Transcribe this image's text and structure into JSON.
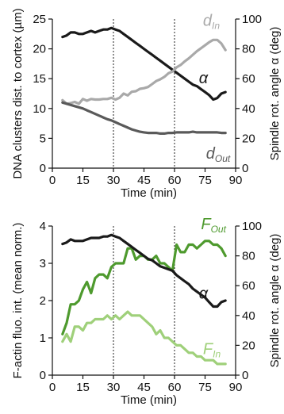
{
  "chart_data": [
    {
      "type": "line",
      "xlabel": "Time (min)",
      "ylabel_left": "DNA clusters dist. to cortex (µm)",
      "ylabel_right": "Spindle rot. angle α (deg)",
      "xlim": [
        0,
        90
      ],
      "xticks": [
        "0",
        "15",
        "30",
        "45",
        "60",
        "75",
        "90"
      ],
      "ylim_left": [
        0,
        25
      ],
      "yticks_left": [
        "0",
        "5",
        "10",
        "15",
        "20",
        "25"
      ],
      "ylim_right": [
        0,
        100
      ],
      "yticks_right": [
        "0",
        "20",
        "40",
        "60",
        "80",
        "100"
      ],
      "vlines": [
        30,
        60
      ],
      "grid": false,
      "series": [
        {
          "name": "α",
          "label_main": "α",
          "label_sub": "",
          "axis": "right",
          "color": "#1a1a1a",
          "label_at": [
            72,
            14.2
          ],
          "x": [
            5,
            7,
            9,
            11,
            13,
            15,
            17,
            19,
            21,
            23,
            25,
            27,
            29,
            31,
            33,
            35,
            37,
            39,
            41,
            43,
            45,
            47,
            49,
            51,
            53,
            55,
            57,
            59,
            61,
            63,
            65,
            67,
            69,
            71,
            73,
            75,
            77,
            79,
            81,
            83,
            85
          ],
          "values": [
            88,
            89,
            91,
            91,
            90,
            90,
            91,
            92,
            91,
            92,
            93,
            93,
            94,
            93,
            92,
            90,
            88,
            86,
            84,
            82,
            80,
            78,
            76,
            74,
            72,
            70,
            68,
            66,
            64,
            62,
            60,
            58,
            56,
            55,
            53,
            51,
            49,
            46,
            47,
            50,
            51
          ]
        },
        {
          "name": "d_In",
          "label_main": "d",
          "label_sub": "In",
          "axis": "left",
          "color": "#a9a9a9",
          "label_at": [
            74,
            23.9
          ],
          "x": [
            5,
            7,
            9,
            11,
            13,
            15,
            17,
            19,
            21,
            23,
            25,
            27,
            29,
            31,
            33,
            35,
            37,
            39,
            41,
            43,
            45,
            47,
            49,
            51,
            53,
            55,
            57,
            59,
            61,
            63,
            65,
            67,
            69,
            71,
            73,
            75,
            77,
            79,
            81,
            83,
            85
          ],
          "values": [
            11.4,
            10.8,
            10.9,
            11.1,
            10.8,
            11.6,
            11.3,
            11.6,
            11.5,
            11.5,
            11.6,
            11.6,
            11.8,
            11.5,
            11.8,
            12.5,
            12.2,
            12.8,
            12.9,
            13.3,
            13.4,
            13.6,
            14.1,
            14.6,
            14.9,
            15.3,
            15.9,
            16.2,
            16.9,
            17.3,
            17.9,
            18.4,
            19.0,
            19.6,
            20.1,
            20.6,
            21.1,
            21.5,
            21.5,
            20.9,
            19.8
          ]
        },
        {
          "name": "d_Out",
          "label_main": "d",
          "label_sub": "Out",
          "axis": "left",
          "color": "#5a5a5a",
          "label_at": [
            75.5,
            1.6
          ],
          "x": [
            5,
            7,
            9,
            11,
            13,
            15,
            17,
            19,
            21,
            23,
            25,
            27,
            29,
            31,
            33,
            35,
            37,
            39,
            41,
            43,
            45,
            47,
            49,
            51,
            53,
            55,
            57,
            59,
            61,
            63,
            65,
            67,
            69,
            71,
            73,
            75,
            77,
            79,
            81,
            83,
            85
          ],
          "values": [
            11.0,
            10.8,
            10.6,
            10.4,
            10.2,
            10.0,
            9.7,
            9.4,
            9.1,
            8.8,
            8.5,
            8.2,
            8.0,
            7.7,
            7.4,
            7.1,
            6.8,
            6.5,
            6.3,
            6.1,
            6.0,
            5.9,
            5.9,
            5.9,
            5.8,
            5.8,
            5.9,
            5.9,
            6.0,
            6.0,
            6.0,
            6.0,
            6.1,
            6.0,
            6.0,
            6.0,
            6.0,
            6.0,
            6.0,
            5.9,
            5.9
          ]
        }
      ]
    },
    {
      "type": "line",
      "xlabel": "Time (min)",
      "ylabel_left": "F-actin fluo. int. (mean norm.)",
      "ylabel_left_color": "#3f9b2a",
      "ylabel_right": "Spindle rot. angle α (deg)",
      "xlim": [
        0,
        90
      ],
      "xticks": [
        "0",
        "15",
        "30",
        "45",
        "60",
        "75",
        "90"
      ],
      "ylim_left": [
        0,
        4
      ],
      "yticks_left": [
        "0",
        "1",
        "2",
        "3",
        "4"
      ],
      "ylim_right": [
        0,
        100
      ],
      "yticks_right": [
        "0",
        "20",
        "40",
        "60",
        "80",
        "100"
      ],
      "vlines": [
        30,
        60
      ],
      "grid": false,
      "series": [
        {
          "name": "F_Out",
          "label_main": "F",
          "label_sub": "Out",
          "axis": "left",
          "color": "#4e9a2e",
          "label_at": [
            73,
            3.92
          ],
          "x": [
            5,
            7,
            9,
            11,
            13,
            15,
            17,
            19,
            21,
            23,
            25,
            27,
            29,
            31,
            33,
            35,
            37,
            39,
            41,
            43,
            45,
            47,
            49,
            51,
            53,
            55,
            57,
            59,
            61,
            63,
            65,
            67,
            69,
            71,
            73,
            75,
            77,
            79,
            81,
            83,
            85
          ],
          "values": [
            1.1,
            1.4,
            1.9,
            1.9,
            2.0,
            2.3,
            2.5,
            2.2,
            2.6,
            2.7,
            2.7,
            2.6,
            2.9,
            3.0,
            3.0,
            3.0,
            3.4,
            3.4,
            3.1,
            3.2,
            3.2,
            3.1,
            3.1,
            3.2,
            3.0,
            3.0,
            2.9,
            2.8,
            3.5,
            3.3,
            3.3,
            3.5,
            3.5,
            3.4,
            3.5,
            3.6,
            3.6,
            3.5,
            3.5,
            3.4,
            3.2
          ]
        },
        {
          "name": "α",
          "label_main": "α",
          "label_sub": "",
          "axis": "right",
          "color": "#1a1a1a",
          "label_at": [
            72,
            2.05
          ],
          "x": [
            5,
            7,
            9,
            11,
            13,
            15,
            17,
            19,
            21,
            23,
            25,
            27,
            29,
            31,
            33,
            35,
            37,
            39,
            41,
            43,
            45,
            47,
            49,
            51,
            53,
            55,
            57,
            59,
            61,
            63,
            65,
            67,
            69,
            71,
            73,
            75,
            77,
            79,
            81,
            83,
            85
          ],
          "values": [
            88,
            89,
            91,
            90,
            90,
            90,
            91,
            92,
            92,
            92,
            93,
            93,
            94,
            93,
            92,
            90,
            88,
            86,
            84,
            82,
            80,
            78,
            77,
            75,
            73,
            72,
            71,
            70,
            67,
            65,
            63,
            61,
            58,
            56,
            54,
            52,
            49,
            46,
            46,
            49,
            50
          ]
        },
        {
          "name": "F_In",
          "label_main": "F",
          "label_sub": "In",
          "axis": "left",
          "color": "#9fd07a",
          "label_at": [
            74,
            0.56
          ],
          "x": [
            5,
            7,
            9,
            11,
            13,
            15,
            17,
            19,
            21,
            23,
            25,
            27,
            29,
            31,
            33,
            35,
            37,
            39,
            41,
            43,
            45,
            47,
            49,
            51,
            53,
            55,
            57,
            59,
            61,
            63,
            65,
            67,
            69,
            71,
            73,
            75,
            77,
            79,
            81,
            83,
            85
          ],
          "values": [
            0.9,
            1.1,
            0.9,
            1.3,
            1.3,
            1.2,
            1.4,
            1.4,
            1.5,
            1.5,
            1.5,
            1.6,
            1.5,
            1.6,
            1.5,
            1.6,
            1.7,
            1.6,
            1.6,
            1.6,
            1.5,
            1.4,
            1.3,
            1.1,
            1.2,
            1.0,
            1.0,
            0.9,
            0.8,
            0.8,
            0.7,
            0.6,
            0.6,
            0.5,
            0.5,
            0.4,
            0.4,
            0.4,
            0.3,
            0.3,
            0.3
          ]
        }
      ]
    }
  ]
}
